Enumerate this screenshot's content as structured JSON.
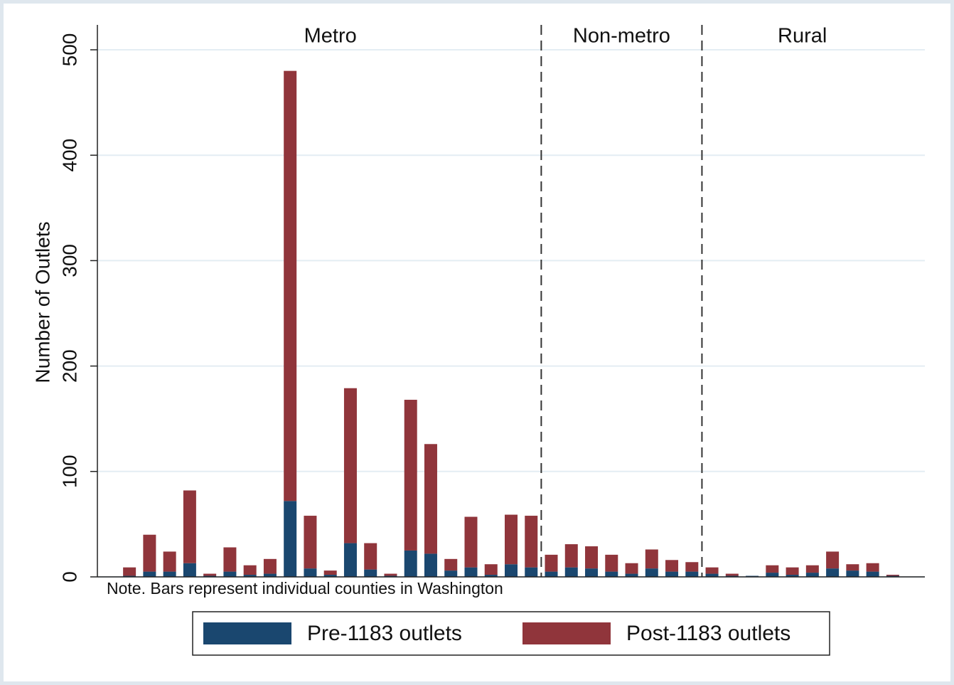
{
  "chart_data": {
    "type": "stacked-bar",
    "y_label": "Number of Outlets",
    "note": "Note. Bars represent individual counties in Washington",
    "categories": [
      null,
      null,
      null,
      null,
      null,
      null,
      null,
      null,
      null,
      null,
      null,
      null,
      null,
      null,
      null,
      null,
      null,
      null,
      null,
      null,
      null,
      null,
      null,
      null,
      null,
      null,
      null,
      null,
      null,
      null,
      null,
      null,
      null,
      null,
      null,
      null,
      null,
      null,
      null
    ],
    "series": [
      {
        "name": "Pre-1183 outlets",
        "color": "#1a476f",
        "values": [
          1,
          5,
          5,
          13,
          1,
          5,
          2,
          3,
          72,
          8,
          2,
          32,
          7,
          1,
          25,
          22,
          6,
          9,
          2,
          12,
          9,
          5,
          9,
          8,
          5,
          3,
          8,
          5,
          5,
          3,
          1,
          1,
          4,
          2,
          4,
          8,
          6,
          5,
          1
        ]
      },
      {
        "name": "Post-1183 outlets",
        "color": "#90353b",
        "values": [
          8,
          35,
          19,
          69,
          2,
          23,
          9,
          14,
          408,
          50,
          4,
          147,
          25,
          2,
          143,
          104,
          11,
          48,
          10,
          47,
          49,
          16,
          22,
          21,
          16,
          10,
          18,
          11,
          9,
          6,
          2,
          0,
          7,
          7,
          7,
          16,
          6,
          8,
          1
        ]
      }
    ],
    "sections": [
      {
        "label": "Metro",
        "count": 21
      },
      {
        "label": "Non-metro",
        "count": 8
      },
      {
        "label": "Rural",
        "count": 10
      }
    ],
    "ylim": [
      0,
      500
    ],
    "yticks": [
      0,
      100,
      200,
      300,
      400,
      500
    ],
    "grid": true,
    "legend": "bottom"
  }
}
